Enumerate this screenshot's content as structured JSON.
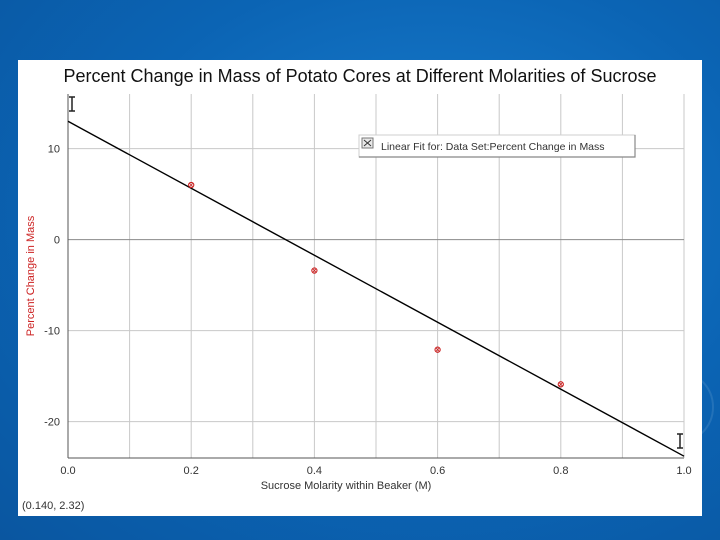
{
  "chart_data": {
    "type": "scatter",
    "title": "Percent Change in Mass of Potato Cores at Different Molarities of Sucrose",
    "xlabel": "Sucrose Molarity within Beaker (M)",
    "ylabel": "Percent Change in Mass",
    "xlim": [
      0.0,
      1.0
    ],
    "ylim": [
      -24,
      16
    ],
    "x_ticks": [
      0.0,
      0.2,
      0.4,
      0.6,
      0.8,
      1.0
    ],
    "x_tick_labels": [
      "0.0",
      "0.2",
      "0.4",
      "0.6",
      "0.8",
      "1.0"
    ],
    "y_ticks": [
      10,
      0,
      -10,
      -20
    ],
    "y_tick_labels": [
      "10",
      "0",
      "-10",
      "-20"
    ],
    "series": [
      {
        "name": "Percent Change in Mass",
        "x": [
          0.2,
          0.4,
          0.6,
          0.8
        ],
        "y": [
          6.0,
          -3.4,
          -12.1,
          -15.9
        ],
        "color": "#cc2222"
      }
    ],
    "fit_line": {
      "label": "Linear Fit for: Data Set:Percent Change in Mass",
      "x": [
        0.0,
        1.0
      ],
      "y": [
        13.0,
        -23.8
      ],
      "color": "#000000"
    },
    "legend_icon": "fit-legend-icon",
    "coordinate_readout": "(0.140, 2.32)",
    "grid": true
  }
}
